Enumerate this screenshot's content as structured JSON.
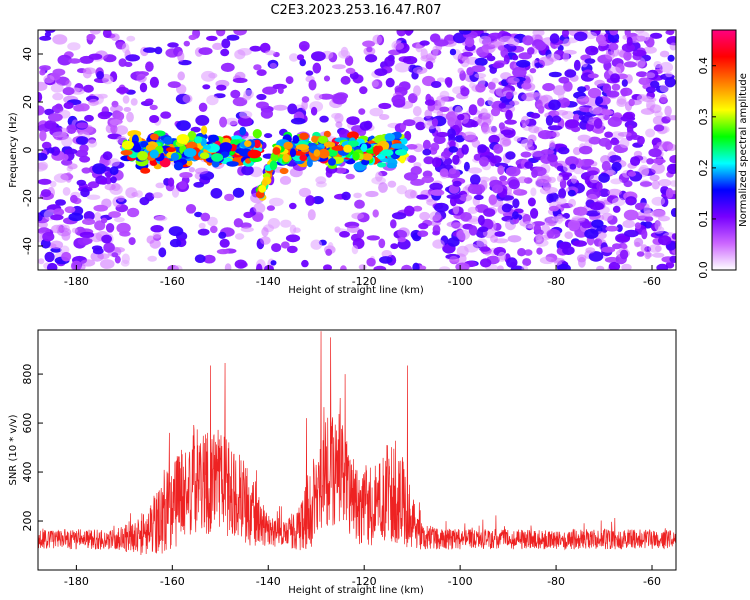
{
  "page": {
    "title": "C2E3.2023.253.16.47.R07"
  },
  "chart_data": [
    {
      "type": "heatmap",
      "xlabel": "Height of straight line (km)",
      "ylabel": "Frequency (Hz)",
      "xlim": [
        -188,
        -55
      ],
      "ylim": [
        -50,
        50
      ],
      "x_ticks": [
        -180,
        -160,
        -140,
        -120,
        -100,
        -80,
        -60
      ],
      "y_ticks": [
        -40,
        -20,
        0,
        20,
        40
      ],
      "colorbar": {
        "label": "Normalized spectral amplitude",
        "range": [
          0,
          0.47
        ],
        "ticks": [
          0.0,
          0.1,
          0.2,
          0.3,
          0.4
        ],
        "colors": [
          "#ffffff",
          "#cc66ff",
          "#7700ff",
          "#0000ff",
          "#00ffff",
          "#00ff00",
          "#ffff00",
          "#ff8000",
          "#ff0000",
          "#ff0080"
        ]
      },
      "background_noise_amplitude": [
        0.03,
        0.14
      ],
      "signal_band": {
        "x_ranges": [
          [
            -170,
            -142
          ],
          [
            -138,
            -112
          ]
        ],
        "frequency_center": 0,
        "frequency_spread": 4,
        "amplitude_range": [
          0.15,
          0.45
        ]
      },
      "slanted_trace": {
        "x": [
          -142,
          -138
        ],
        "frequency": [
          -20,
          0
        ]
      }
    },
    {
      "type": "line",
      "xlabel": "Height of straight line (km)",
      "ylabel": "SNR (10 * v/v)",
      "xlim": [
        -188,
        -55
      ],
      "ylim": [
        0,
        980
      ],
      "x_ticks": [
        -180,
        -160,
        -140,
        -120,
        -100,
        -80,
        -60
      ],
      "y_ticks": [
        200,
        400,
        600,
        800
      ],
      "color": "#ee2222",
      "envelope": {
        "x": [
          -188,
          -180,
          -172,
          -168,
          -165,
          -160,
          -155,
          -150,
          -147,
          -144,
          -141,
          -138,
          -134,
          -130,
          -128,
          -126,
          -124,
          -121,
          -118,
          -115,
          -112,
          -110,
          -108,
          -104,
          -100,
          -90,
          -80,
          -70,
          -60,
          -55
        ],
        "baseline": [
          130,
          130,
          130,
          140,
          170,
          280,
          380,
          380,
          340,
          270,
          180,
          150,
          170,
          300,
          430,
          460,
          370,
          260,
          280,
          340,
          300,
          210,
          140,
          130,
          130,
          130,
          130,
          130,
          130,
          130
        ],
        "spread": [
          70,
          75,
          80,
          120,
          200,
          330,
          380,
          400,
          350,
          280,
          140,
          90,
          150,
          350,
          430,
          480,
          380,
          260,
          300,
          360,
          340,
          200,
          100,
          80,
          75,
          75,
          75,
          75,
          75,
          75
        ]
      },
      "peaks": [
        [
          -129,
          975
        ],
        [
          -127,
          950
        ],
        [
          -152,
          835
        ],
        [
          -149,
          845
        ],
        [
          -111,
          835
        ],
        [
          -124,
          800
        ],
        [
          -132,
          620
        ]
      ]
    }
  ]
}
